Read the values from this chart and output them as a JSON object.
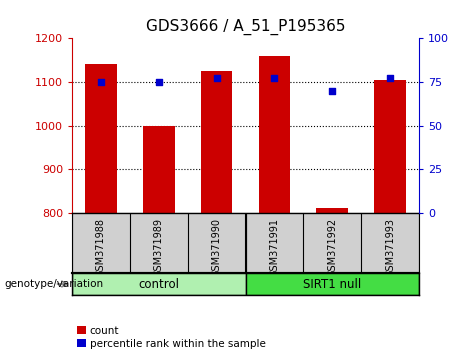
{
  "title": "GDS3666 / A_51_P195365",
  "samples": [
    "GSM371988",
    "GSM371989",
    "GSM371990",
    "GSM371991",
    "GSM371992",
    "GSM371993"
  ],
  "counts": [
    1140,
    1000,
    1125,
    1160,
    812,
    1105
  ],
  "percentiles": [
    75,
    75,
    77,
    77,
    70,
    77
  ],
  "ylim_left": [
    800,
    1200
  ],
  "ylim_right": [
    0,
    100
  ],
  "yticks_left": [
    800,
    900,
    1000,
    1100,
    1200
  ],
  "yticks_right": [
    0,
    25,
    50,
    75,
    100
  ],
  "bar_color": "#cc0000",
  "dot_color": "#0000cc",
  "group_labels": [
    "control",
    "SIRT1 null"
  ],
  "group_colors": [
    "#b0f0b0",
    "#44dd44"
  ],
  "group_label_text": "genotype/variation",
  "legend_count_label": "count",
  "legend_percentile_label": "percentile rank within the sample",
  "bg_label_area": "#d0d0d0",
  "title_fontsize": 11,
  "tick_fontsize": 8,
  "bar_width": 0.55
}
